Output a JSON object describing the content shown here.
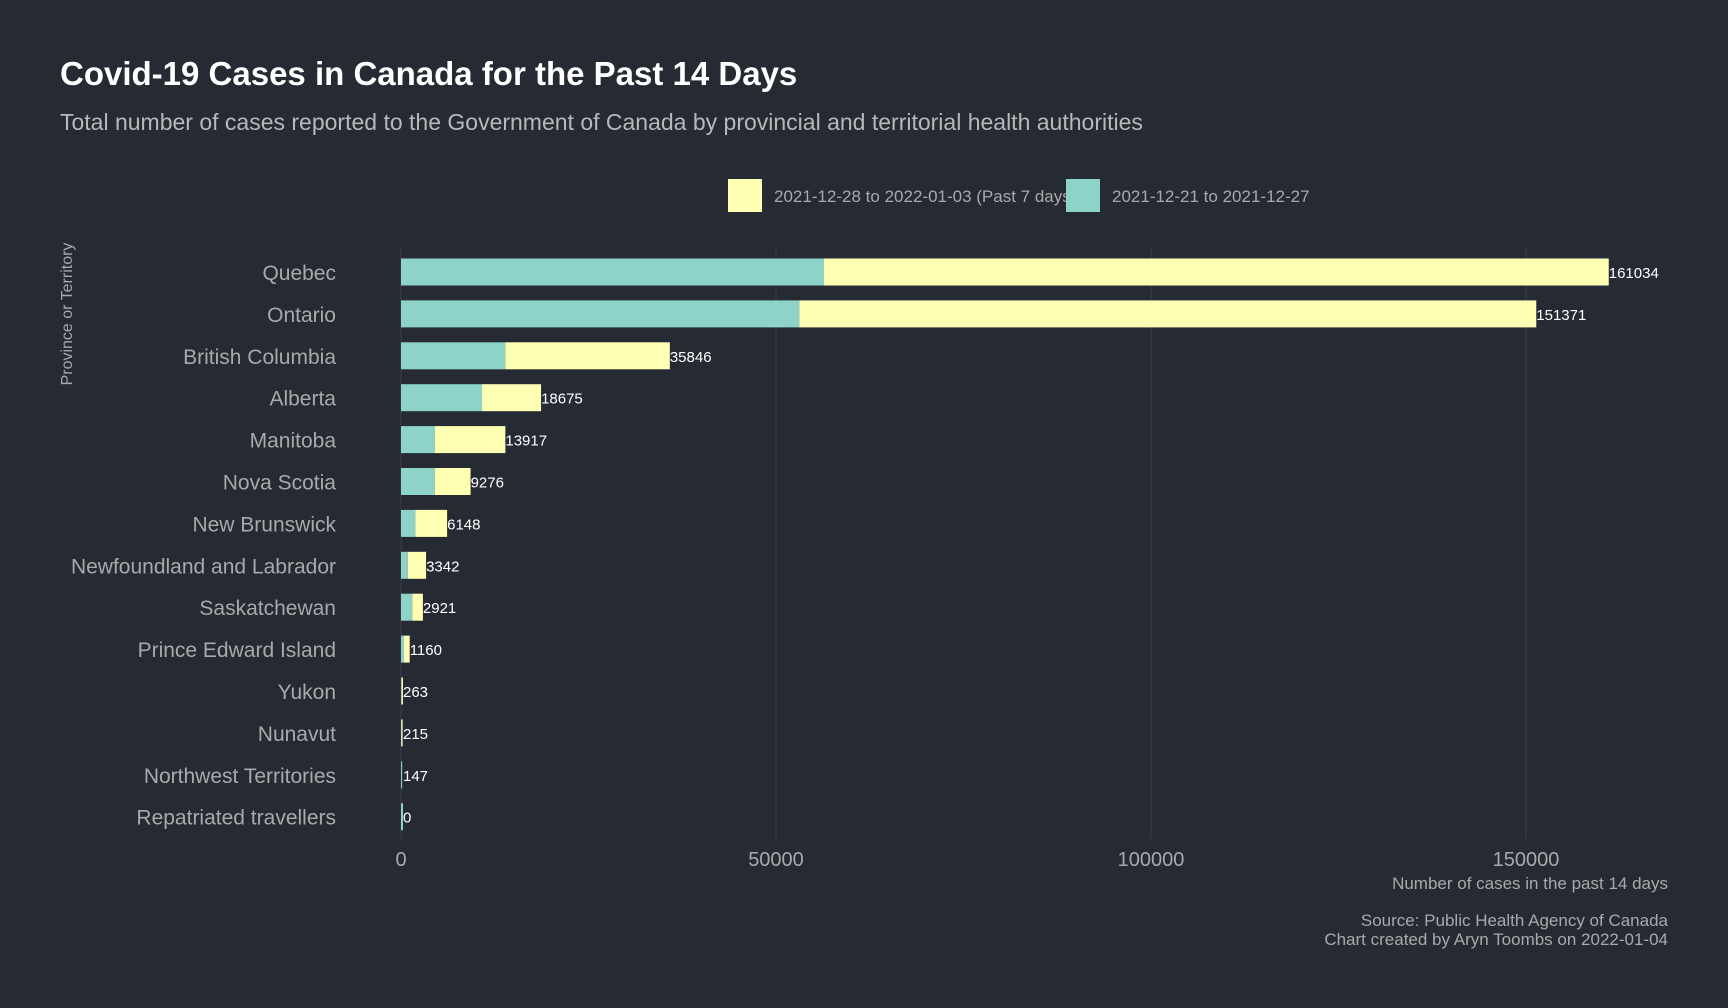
{
  "colors": {
    "background": "#252a33",
    "title": "#ffffff",
    "subtitle": "#b8b8b8",
    "muted": "#a9a9a9",
    "gridline": "#3a3f49",
    "past7": "#ffffb3",
    "prior7": "#8dd3c7",
    "value_label": "#ffffff"
  },
  "chart_data": {
    "type": "bar",
    "orientation": "horizontal",
    "stacked": true,
    "title": "Covid-19 Cases in Canada for the Past 14 Days",
    "subtitle": "Total number of cases reported to the Government of Canada by provincial and territorial health authorities",
    "ylabel": "Province or Territory",
    "xlabel": "Number of cases in the past 14 days",
    "xlim": [
      0,
      170000
    ],
    "xticks": [
      0,
      50000,
      100000,
      150000
    ],
    "grid": true,
    "legend_position": "top",
    "categories": [
      "Quebec",
      "Ontario",
      "British Columbia",
      "Alberta",
      "Manitoba",
      "Nova Scotia",
      "New Brunswick",
      "Newfoundland and Labrador",
      "Saskatchewan",
      "Prince Edward Island",
      "Yukon",
      "Nunavut",
      "Northwest Territories",
      "Repatriated travellers"
    ],
    "series": [
      {
        "name": "2021-12-21 to 2021-12-27",
        "color_key": "prior7",
        "values": [
          56400,
          53100,
          13900,
          10800,
          4500,
          4500,
          1900,
          900,
          1500,
          400,
          100,
          70,
          120,
          0
        ]
      },
      {
        "name": "2021-12-28 to 2022-01-03 (Past 7 days)",
        "color_key": "past7",
        "values": [
          104634,
          98271,
          21946,
          7875,
          9417,
          4776,
          4248,
          2442,
          1421,
          760,
          163,
          145,
          27,
          0
        ]
      }
    ],
    "totals": [
      161034,
      151371,
      35846,
      18675,
      13917,
      9276,
      6148,
      3342,
      2921,
      1160,
      263,
      215,
      147,
      0
    ],
    "legend": [
      {
        "label": "2021-12-28 to 2022-01-03 (Past 7 days)",
        "color_key": "past7"
      },
      {
        "label": "2021-12-21 to 2021-12-27",
        "color_key": "prior7"
      }
    ]
  },
  "caption": {
    "source": "Source: Public Health Agency of Canada",
    "credit": "Chart created by Aryn Toombs on 2022-01-04"
  }
}
